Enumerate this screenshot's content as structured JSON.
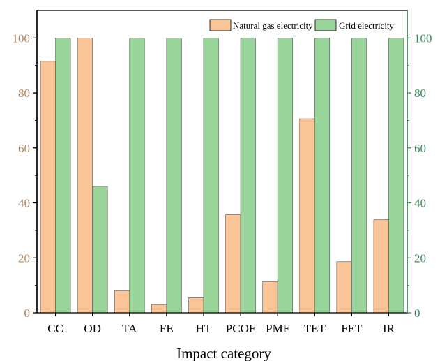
{
  "chart_data": {
    "type": "bar",
    "xlabel": "Impact category",
    "categories": [
      "CC",
      "OD",
      "TA",
      "FE",
      "HT",
      "PCOF",
      "PMF",
      "TET",
      "FET",
      "IR"
    ],
    "series": [
      {
        "name": "Natural gas electricity",
        "color": "#F9C597",
        "values": [
          91.5,
          100,
          8,
          3,
          5.5,
          35.7,
          11.3,
          70.6,
          18.6,
          33.9
        ]
      },
      {
        "name": "Grid electricity",
        "color": "#99D49A",
        "values": [
          100,
          46,
          100,
          100,
          100,
          100,
          100,
          100,
          100,
          100
        ]
      }
    ],
    "ylim": [
      0,
      110
    ],
    "yticks": [
      "0",
      "20",
      "40",
      "60",
      "80",
      "100"
    ],
    "left_axis_color": "#B5865E",
    "right_axis_color": "#3C8A59",
    "legend_position": "top-right",
    "grid": false
  }
}
